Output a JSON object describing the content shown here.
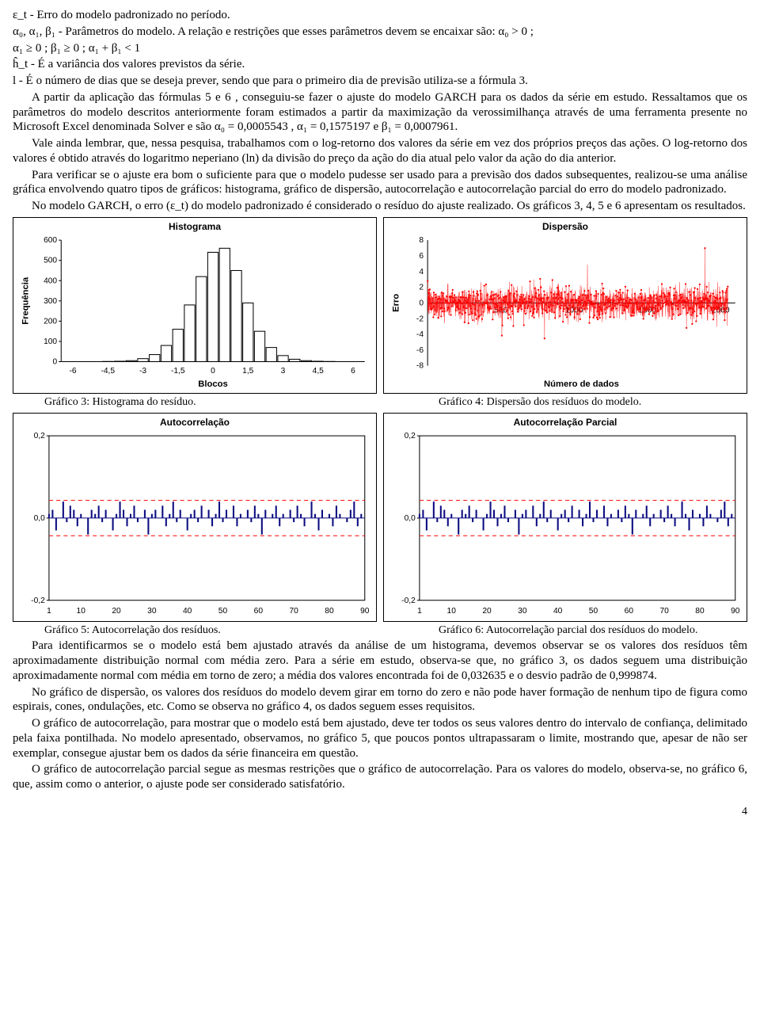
{
  "defs": {
    "l1": "ε_t - Erro do modelo padronizado no período.",
    "l2": "α₀, α₁, β₁ - Parâmetros do modelo. A relação e restrições que esses parâmetros devem se encaixar são: α₀ > 0 ;",
    "l3": "α₁ ≥ 0 ;  β₁ ≥ 0 ;  α₁ + β₁ < 1",
    "l4": "ĥ_t - É a variância dos valores previstos da série.",
    "l5": "l - É o número de dias que se deseja prever, sendo que para o primeiro dia de previsão utiliza-se a fórmula 3."
  },
  "body": {
    "p1": "A partir da aplicação das fórmulas 5 e 6 , conseguiu-se fazer o ajuste do modelo GARCH para os dados da série em estudo. Ressaltamos que os parâmetros do modelo descritos anteriormente foram estimados a partir da maximização da verossimilhança através de uma ferramenta presente no Microsoft Excel denominada Solver e são α₀ = 0,0005543 ,  α₁ = 0,1575197 e  β₁ = 0,0007961.",
    "p2": "Vale ainda lembrar, que, nessa pesquisa, trabalhamos com o log-retorno dos valores da série em vez dos próprios preços das ações. O log-retorno dos valores é obtido através do logaritmo neperiano (ln) da divisão do preço da ação do dia atual pelo valor da ação do dia anterior.",
    "p3": "Para verificar se o ajuste era bom o suficiente para que o modelo pudesse ser usado para a previsão dos dados subsequentes, realizou-se uma análise gráfica envolvendo quatro tipos de gráficos: histograma, gráfico de dispersão, autocorrelação e autocorrelação parcial do erro do modelo padronizado.",
    "p4": "No modelo GARCH, o erro (ε_t) do modelo padronizado é considerado o resíduo do ajuste realizado. Os gráficos 3, 4, 5 e 6 apresentam os resultados."
  },
  "captions": {
    "c3": "Gráfico 3: Histograma do resíduo.",
    "c4": "Gráfico 4: Dispersão dos resíduos do modelo.",
    "c5": "Gráfico 5: Autocorrelação dos resíduos.",
    "c6": "Gráfico 6: Autocorrelação parcial dos resíduos do modelo."
  },
  "after": {
    "p5": "Para identificarmos se o modelo está bem ajustado através da análise de um histograma, devemos observar se os valores dos resíduos têm aproximadamente distribuição normal com média zero. Para a série em estudo, observa-se que, no gráfico 3, os dados seguem uma distribuição aproximadamente normal com média em torno de zero; a média dos valores encontrada foi de 0,032635 e o desvio padrão de 0,999874.",
    "p6": "No gráfico de dispersão, os valores dos resíduos do modelo devem girar em torno do zero e não pode haver formação de nenhum tipo de figura como espirais, cones, ondulações, etc. Como se observa no gráfico 4, os dados seguem esses requisitos.",
    "p7": "O gráfico de autocorrelação, para mostrar que o modelo está bem ajustado, deve ter todos os seus valores dentro do intervalo de confiança, delimitado pela faixa pontilhada. No modelo apresentado, observamos, no gráfico 5, que poucos pontos ultrapassaram o limite, mostrando que, apesar de não ser exemplar, consegue ajustar bem os dados da série financeira em questão.",
    "p8": "O gráfico de autocorrelação parcial segue as mesmas restrições que o gráfico de autocorrelação. Para os valores do modelo, observa-se, no gráfico 6, que, assim como o anterior, o ajuste pode ser considerado satisfatório."
  },
  "page_number": "4",
  "histogram": {
    "title": "Histograma",
    "xlabel": "Blocos",
    "ylabel": "Frequência",
    "type": "bar",
    "categories": [
      "-6",
      "-4,5",
      "-3",
      "-1,5",
      "0",
      "1,5",
      "3",
      "4,5",
      "6"
    ],
    "bins_x": [
      -6,
      -5.5,
      -5,
      -4.5,
      -4,
      -3.5,
      -3,
      -2.5,
      -2,
      -1.5,
      -1,
      -0.5,
      0,
      0.5,
      1,
      1.5,
      2,
      2.5,
      3,
      3.5,
      4,
      4.5,
      5,
      5.5,
      6
    ],
    "bins_y": [
      0,
      0,
      0,
      1,
      2,
      5,
      15,
      35,
      80,
      160,
      280,
      420,
      540,
      560,
      450,
      290,
      150,
      70,
      30,
      12,
      5,
      2,
      1,
      0,
      0
    ],
    "yticks": [
      0,
      100,
      200,
      300,
      400,
      500,
      600
    ],
    "ylim": [
      0,
      600
    ],
    "xlim": [
      -6.5,
      6.5
    ],
    "bar_fill": "#ffffff",
    "bar_border": "#000000",
    "axis_color": "#000000",
    "tick_fontsize": 10,
    "label_fontsize": 11,
    "bar_width": 0.45
  },
  "scatter": {
    "title": "Dispersão",
    "xlabel": "Número de dados",
    "ylabel": "Erro",
    "type": "scatter-line",
    "xlim": [
      0,
      2100
    ],
    "ylim": [
      -8,
      8
    ],
    "yticks": [
      -8,
      -6,
      -4,
      -2,
      0,
      2,
      4,
      6,
      8
    ],
    "xticks": [
      0,
      500,
      1000,
      1500,
      2000
    ],
    "line_color": "#ff0000",
    "marker_color": "#ff0000",
    "axis_color": "#000000",
    "n_points": 2050,
    "noise_sd": 1.0,
    "seed": 12345
  },
  "acf": {
    "title": "Autocorrelação",
    "type": "acf",
    "lags_label": [
      1,
      10,
      20,
      30,
      40,
      50,
      60,
      70,
      80,
      90
    ],
    "n_lags": 90,
    "ylim": [
      -0.2,
      0.2
    ],
    "yticks": [
      -0.2,
      0.0,
      0.2
    ],
    "ytick_labels": [
      "-0,2",
      "0,0",
      "0,2"
    ],
    "ci": 0.043,
    "bar_color": "#0a0a80",
    "ci_color": "#ff0000",
    "axis_color": "#000000",
    "values": [
      0.01,
      0.02,
      -0.03,
      0.0,
      0.04,
      -0.01,
      0.03,
      0.02,
      -0.02,
      0.01,
      0.0,
      -0.04,
      0.02,
      0.01,
      0.03,
      -0.01,
      0.02,
      0.0,
      -0.03,
      0.01,
      0.04,
      0.02,
      -0.02,
      0.01,
      0.03,
      -0.01,
      0.0,
      0.02,
      -0.04,
      0.01,
      0.02,
      0.0,
      0.03,
      -0.02,
      0.01,
      0.04,
      -0.01,
      0.02,
      0.0,
      -0.03,
      0.01,
      0.02,
      -0.01,
      0.03,
      0.0,
      0.02,
      -0.02,
      0.01,
      0.04,
      -0.01,
      0.02,
      0.0,
      0.03,
      -0.02,
      0.01,
      0.0,
      0.02,
      -0.01,
      0.03,
      0.01,
      -0.04,
      0.02,
      0.0,
      0.01,
      0.03,
      -0.02,
      0.01,
      0.0,
      0.02,
      -0.01,
      0.03,
      0.01,
      -0.02,
      0.0,
      0.04,
      0.01,
      -0.03,
      0.02,
      0.0,
      0.01,
      -0.02,
      0.03,
      0.01,
      0.0,
      -0.01,
      0.02,
      0.04,
      -0.02,
      0.01,
      0.0
    ]
  },
  "pacf": {
    "title": "Autocorrelação Parcial",
    "type": "acf",
    "lags_label": [
      1,
      10,
      20,
      30,
      40,
      50,
      60,
      70,
      80,
      90
    ],
    "n_lags": 90,
    "ylim": [
      -0.2,
      0.2
    ],
    "yticks": [
      -0.2,
      0.0,
      0.2
    ],
    "ytick_labels": [
      "-0,2",
      "0,0",
      "0,2"
    ],
    "ci": 0.043,
    "bar_color": "#0a0a80",
    "ci_color": "#ff0000",
    "axis_color": "#000000",
    "values": [
      0.01,
      0.02,
      -0.03,
      0.0,
      0.04,
      -0.01,
      0.03,
      0.02,
      -0.02,
      0.01,
      0.0,
      -0.04,
      0.02,
      0.01,
      0.03,
      -0.01,
      0.02,
      0.0,
      -0.03,
      0.01,
      0.04,
      0.02,
      -0.02,
      0.01,
      0.03,
      -0.01,
      0.0,
      0.02,
      -0.04,
      0.01,
      0.02,
      0.0,
      0.03,
      -0.02,
      0.01,
      0.04,
      -0.01,
      0.02,
      0.0,
      -0.03,
      0.01,
      0.02,
      -0.01,
      0.03,
      0.0,
      0.02,
      -0.02,
      0.01,
      0.04,
      -0.01,
      0.02,
      0.0,
      0.03,
      -0.02,
      0.01,
      0.0,
      0.02,
      -0.01,
      0.03,
      0.01,
      -0.04,
      0.02,
      0.0,
      0.01,
      0.03,
      -0.02,
      0.01,
      0.0,
      0.02,
      -0.01,
      0.03,
      0.01,
      -0.02,
      0.0,
      0.04,
      0.01,
      -0.03,
      0.02,
      0.0,
      0.01,
      -0.02,
      0.03,
      0.01,
      0.0,
      -0.01,
      0.02,
      0.04,
      -0.02,
      0.01,
      0.0
    ]
  }
}
